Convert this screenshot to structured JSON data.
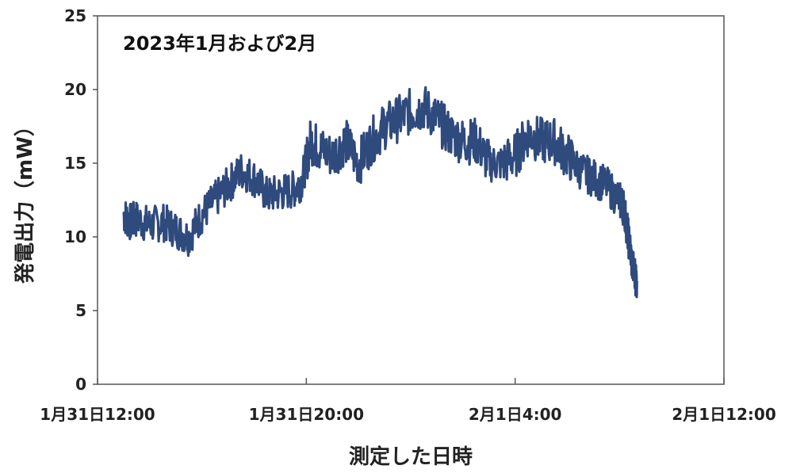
{
  "chart_data": {
    "type": "line",
    "annotation": "2023年1月および2月",
    "xlabel": "測定した日時",
    "ylabel": "発電出力（mW）",
    "ylim": [
      0,
      25
    ],
    "yticks": [
      0,
      5,
      10,
      15,
      20,
      25
    ],
    "xlim": [
      "1月31日12:00",
      "2月1日12:00"
    ],
    "xticks": [
      "1月31日12:00",
      "1月31日20:00",
      "2月1日4:00",
      "2月1日12:00"
    ],
    "grid": false,
    "line_color": "#2f4a7d",
    "series": [
      {
        "x": [
          "1月31日13:00",
          "1月31日13:15",
          "1月31日13:30",
          "1月31日14:00",
          "1月31日14:30",
          "1月31日15:00",
          "1月31日15:30",
          "1月31日16:00",
          "1月31日16:30",
          "1月31日17:00",
          "1月31日17:30",
          "1月31日18:00",
          "1月31日18:30",
          "1月31日19:00",
          "1月31日19:30",
          "1月31日19:50",
          "1月31日20:10",
          "1月31日20:30",
          "1月31日21:00",
          "1月31日21:30",
          "1月31日22:00",
          "1月31日22:30",
          "1月31日23:00",
          "1月31日23:30",
          "2月1日0:00",
          "2月1日0:30",
          "2月1日1:00",
          "2月1日1:30",
          "2月1日2:00",
          "2月1日2:30",
          "2月1日3:00",
          "2月1日3:30",
          "2月1日4:00",
          "2月1日4:30",
          "2月1日5:00",
          "2月1日5:30",
          "2月1日6:00",
          "2月1日6:30",
          "2月1日7:00",
          "2月1日7:30",
          "2月1日8:00",
          "2月1日8:10",
          "2月1日8:20",
          "2月1日8:30",
          "2月1日8:40"
        ],
        "values": [
          11.5,
          11.0,
          11.2,
          10.8,
          11.0,
          10.5,
          10.0,
          11.5,
          12.5,
          13.5,
          14.5,
          14.0,
          12.8,
          13.0,
          13.2,
          13.8,
          16.5,
          16.0,
          15.5,
          16.5,
          15.0,
          16.5,
          17.5,
          18.0,
          18.5,
          18.8,
          18.0,
          17.0,
          16.5,
          16.5,
          15.0,
          15.0,
          15.5,
          17.0,
          16.5,
          16.5,
          15.5,
          14.5,
          14.0,
          13.5,
          12.5,
          12.0,
          10.0,
          8.0,
          7.0
        ]
      }
    ]
  }
}
